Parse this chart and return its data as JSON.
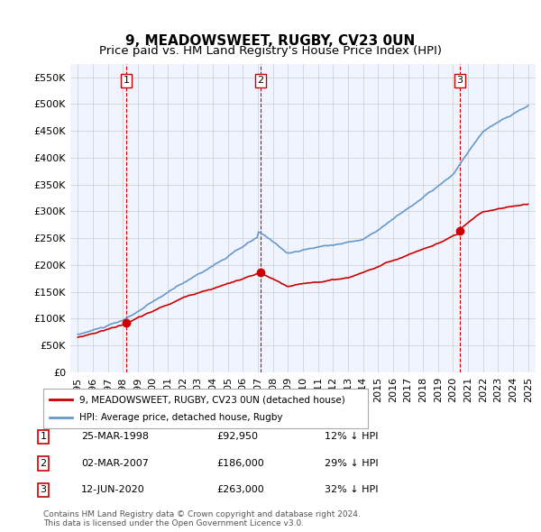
{
  "title": "9, MEADOWSWEET, RUGBY, CV23 0UN",
  "subtitle": "Price paid vs. HM Land Registry's House Price Index (HPI)",
  "ylabel_ticks": [
    "£0",
    "£50K",
    "£100K",
    "£150K",
    "£200K",
    "£250K",
    "£300K",
    "£350K",
    "£400K",
    "£450K",
    "£500K",
    "£550K"
  ],
  "ytick_values": [
    0,
    50000,
    100000,
    150000,
    200000,
    250000,
    300000,
    350000,
    400000,
    450000,
    500000,
    550000
  ],
  "ylim": [
    0,
    575000
  ],
  "xlim_start": 1994.5,
  "xlim_end": 2025.5,
  "sale_dates": [
    1998.23,
    2007.17,
    2020.45
  ],
  "sale_prices": [
    92950,
    186000,
    263000
  ],
  "sale_labels": [
    "1",
    "2",
    "3"
  ],
  "vline_color": "#cc0000",
  "vline_style": "--",
  "sale_marker_color": "#cc0000",
  "hpi_line_color": "#6699cc",
  "price_line_color": "#cc0000",
  "legend_label_price": "9, MEADOWSWEET, RUGBY, CV23 0UN (detached house)",
  "legend_label_hpi": "HPI: Average price, detached house, Rugby",
  "table_rows": [
    [
      "1",
      "25-MAR-1998",
      "£92,950",
      "12% ↓ HPI"
    ],
    [
      "2",
      "02-MAR-2007",
      "£186,000",
      "29% ↓ HPI"
    ],
    [
      "3",
      "12-JUN-2020",
      "£263,000",
      "32% ↓ HPI"
    ]
  ],
  "footer_text": "Contains HM Land Registry data © Crown copyright and database right 2024.\nThis data is licensed under the Open Government Licence v3.0.",
  "bg_color": "#f0f4ff",
  "grid_color": "#cccccc",
  "title_fontsize": 11,
  "subtitle_fontsize": 9.5,
  "tick_fontsize": 8
}
